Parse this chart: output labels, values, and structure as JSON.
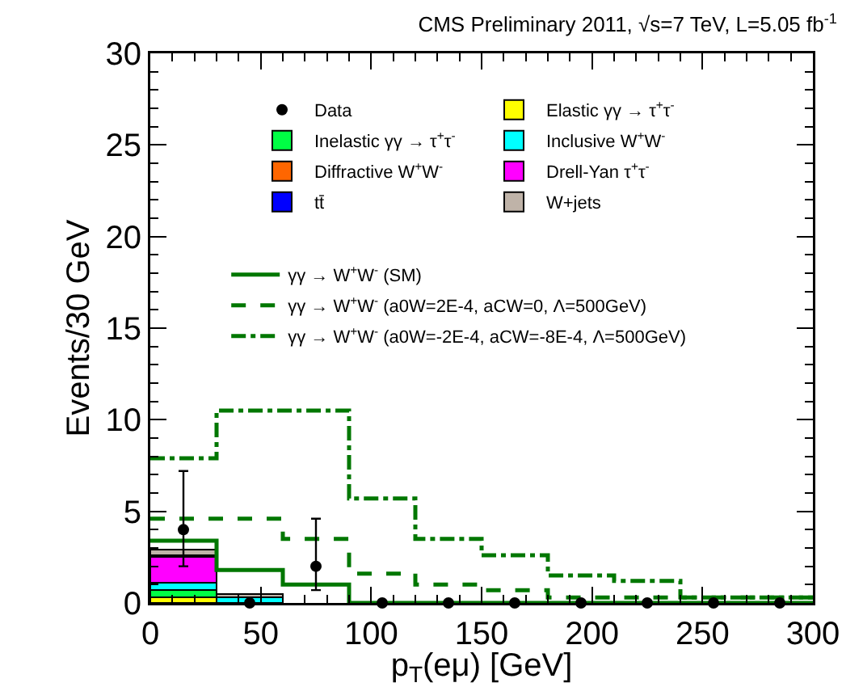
{
  "chart_data": {
    "type": "bar",
    "title": "CMS Preliminary 2011, √s=7 TeV, L=5.05 fb$^{-1}$",
    "xlabel": "p$_{T}$(eμ) [GeV]",
    "ylabel": "Events/30 GeV",
    "x": [
      15,
      45,
      75,
      105,
      135,
      165,
      195,
      225,
      255,
      285
    ],
    "xlim": [
      0,
      300
    ],
    "xticks": [
      0,
      50,
      100,
      150,
      200,
      250,
      300
    ],
    "ylim": [
      0,
      30
    ],
    "yticks": [
      0,
      5,
      10,
      15,
      20,
      25,
      30
    ],
    "stacked": true,
    "grid": false,
    "legend": "top",
    "series": [
      {
        "name": "Data",
        "type": "scatter",
        "marker": "circle",
        "color": "#000000",
        "values": [
          4,
          0,
          2,
          0,
          0,
          0,
          0,
          0,
          0,
          0
        ],
        "errors": [
          [
            2.0,
            7.2
          ],
          null,
          [
            0.7,
            4.6
          ],
          null,
          null,
          null,
          null,
          null,
          null,
          null
        ]
      },
      {
        "name": "Elastic γγ → τ$^{+}$τ$^{-}$",
        "color": "#ffff00",
        "values": [
          0.3,
          null,
          null,
          null,
          null,
          null,
          null,
          null,
          null,
          null
        ]
      },
      {
        "name": "Inelastic γγ → τ$^{+}$τ$^{-}$",
        "color": "#00ff44",
        "values": [
          0.4,
          null,
          null,
          null,
          null,
          null,
          null,
          null,
          null,
          null
        ]
      },
      {
        "name": "Inclusive W$^{+}$W$^{-}$",
        "color": "#00ffff",
        "values": [
          0.4,
          0.3,
          null,
          null,
          null,
          null,
          null,
          null,
          null,
          null
        ]
      },
      {
        "name": "Diffractive W$^{+}$W$^{-}$",
        "color": "#ff6600",
        "values": [
          null,
          null,
          null,
          null,
          null,
          null,
          null,
          null,
          null,
          null
        ]
      },
      {
        "name": "Drell-Yan τ$^{+}$τ$^{-}$",
        "color": "#ff00ff",
        "values": [
          1.4,
          null,
          null,
          null,
          null,
          null,
          null,
          null,
          null,
          null
        ]
      },
      {
        "name": "tt̄",
        "color": "#0000ff",
        "values": [
          0.1,
          null,
          null,
          null,
          null,
          null,
          null,
          null,
          null,
          null
        ]
      },
      {
        "name": "W+jets",
        "color": "#bfb3a8",
        "values": [
          0.3,
          0.2,
          null,
          null,
          null,
          null,
          null,
          null,
          null,
          null
        ]
      },
      {
        "name": "γγ → W$^{+}$W$^{-}$ (SM)",
        "type": "step",
        "line_style": "solid",
        "color": "#007700",
        "x": [
          0,
          30,
          60,
          90,
          120,
          150,
          180,
          210,
          240,
          270,
          300
        ],
        "values": [
          3.4,
          1.8,
          1.0,
          0,
          0,
          0,
          0,
          0,
          0,
          0,
          0
        ]
      },
      {
        "name": "γγ → W$^{+}$W$^{-}$ (a0W=2E-4, aCW=0, Λ=500GeV)",
        "type": "step",
        "line_style": "dashed",
        "color": "#007700",
        "x": [
          0,
          30,
          60,
          90,
          120,
          150,
          180,
          210,
          240,
          270,
          300
        ],
        "values": [
          4.6,
          4.6,
          3.5,
          1.6,
          1.0,
          0.7,
          0.3,
          0.3,
          0.3,
          0.3,
          0.3
        ]
      },
      {
        "name": "γγ → W$^{+}$W$^{-}$ (a0W=-2E-4, aCW=-8E-4, Λ=500GeV)",
        "type": "step",
        "line_style": "dashdot",
        "color": "#007700",
        "x": [
          0,
          30,
          60,
          90,
          120,
          150,
          180,
          210,
          240,
          270,
          300
        ],
        "values": [
          7.9,
          10.5,
          10.5,
          5.7,
          3.5,
          2.6,
          1.5,
          1.2,
          0.3,
          0.3,
          0.3
        ]
      }
    ]
  }
}
